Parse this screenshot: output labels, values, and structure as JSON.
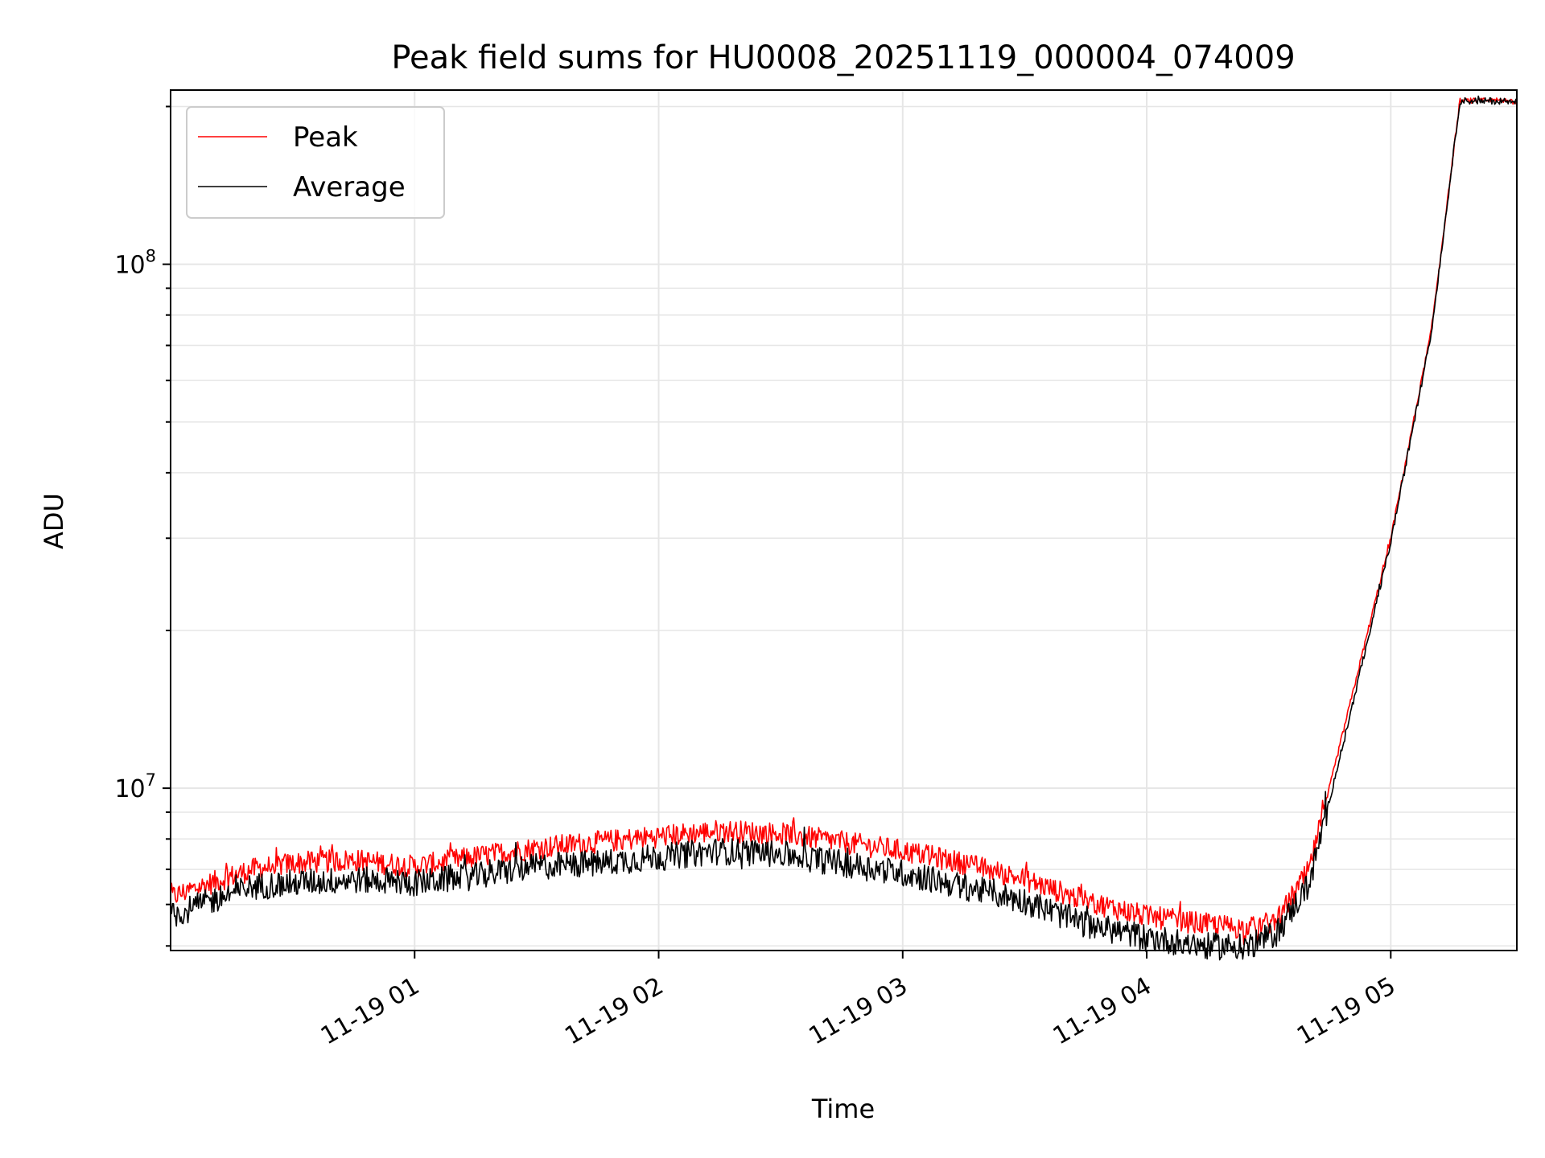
{
  "chart_data": {
    "type": "line",
    "title": "Peak field sums for HU0008_20251119_000004_074009",
    "xlabel": "Time",
    "ylabel": "ADU",
    "yscale": "log",
    "grid": true,
    "legend_placement": "top-left",
    "x_range": [
      "2025-11-19 00:00",
      "2025-11-19 05:31"
    ],
    "ylim": [
      4900000,
      215000000
    ],
    "x_ticks": [
      {
        "value": "2025-11-19 01:00",
        "label": "11-19 01"
      },
      {
        "value": "2025-11-19 02:00",
        "label": "11-19 02"
      },
      {
        "value": "2025-11-19 03:00",
        "label": "11-19 03"
      },
      {
        "value": "2025-11-19 04:00",
        "label": "11-19 04"
      },
      {
        "value": "2025-11-19 05:00",
        "label": "11-19 05"
      }
    ],
    "y_ticks": [
      {
        "value": 10000000,
        "base": "10",
        "exp": "7"
      },
      {
        "value": 100000000,
        "base": "10",
        "exp": "8"
      }
    ],
    "series": [
      {
        "name": "Peak",
        "color": "#ff0000",
        "x": [
          "2025-11-19 00:00",
          "2025-11-19 00:10",
          "2025-11-19 00:20",
          "2025-11-19 00:30",
          "2025-11-19 00:45",
          "2025-11-19 01:00",
          "2025-11-19 01:15",
          "2025-11-19 01:30",
          "2025-11-19 01:45",
          "2025-11-19 02:00",
          "2025-11-19 02:15",
          "2025-11-19 02:30",
          "2025-11-19 02:45",
          "2025-11-19 03:00",
          "2025-11-19 03:15",
          "2025-11-19 03:30",
          "2025-11-19 03:45",
          "2025-11-19 04:00",
          "2025-11-19 04:15",
          "2025-11-19 04:25",
          "2025-11-19 04:32",
          "2025-11-19 04:40",
          "2025-11-19 04:50",
          "2025-11-19 05:00",
          "2025-11-19 05:10",
          "2025-11-19 05:17",
          "2025-11-19 05:31"
        ],
        "values": [
          6200000,
          6600000,
          7000000,
          7200000,
          7300000,
          7100000,
          7400000,
          7700000,
          7900000,
          8100000,
          8300000,
          8200000,
          7900000,
          7600000,
          7200000,
          6700000,
          6100000,
          5700000,
          5500000,
          5400000,
          5600000,
          7000000,
          14500000,
          30000000,
          75000000,
          205000000,
          205000000
        ],
        "noise_amplitude": 0.05
      },
      {
        "name": "Average",
        "color": "#000000",
        "x": [
          "2025-11-19 00:00",
          "2025-11-19 00:10",
          "2025-11-19 00:20",
          "2025-11-19 00:30",
          "2025-11-19 00:45",
          "2025-11-19 01:00",
          "2025-11-19 01:15",
          "2025-11-19 01:30",
          "2025-11-19 01:45",
          "2025-11-19 02:00",
          "2025-11-19 02:15",
          "2025-11-19 02:30",
          "2025-11-19 02:45",
          "2025-11-19 03:00",
          "2025-11-19 03:15",
          "2025-11-19 03:30",
          "2025-11-19 03:45",
          "2025-11-19 04:00",
          "2025-11-19 04:15",
          "2025-11-19 04:25",
          "2025-11-19 04:32",
          "2025-11-19 04:40",
          "2025-11-19 04:50",
          "2025-11-19 05:00",
          "2025-11-19 05:10",
          "2025-11-19 05:17",
          "2025-11-19 05:31"
        ],
        "values": [
          5700000,
          6100000,
          6500000,
          6600000,
          6700000,
          6600000,
          6800000,
          7100000,
          7200000,
          7400000,
          7600000,
          7500000,
          7200000,
          6900000,
          6500000,
          6100000,
          5500000,
          5200000,
          5000000,
          5000000,
          5300000,
          6600000,
          13800000,
          29500000,
          74000000,
          205000000,
          205000000
        ],
        "noise_amplitude": 0.06
      }
    ]
  }
}
